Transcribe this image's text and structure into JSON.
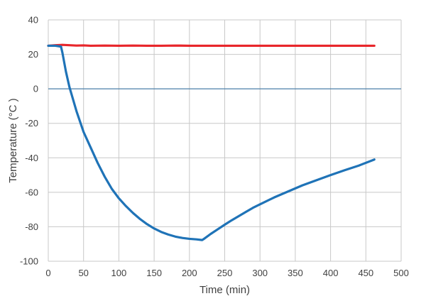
{
  "chart_data": {
    "type": "line",
    "title": "",
    "xlabel": "Time (min)",
    "ylabel": "Temperature (°C )",
    "xlim": [
      0,
      500
    ],
    "ylim": [
      -100,
      40
    ],
    "xticks": [
      0,
      50,
      100,
      150,
      200,
      250,
      300,
      350,
      400,
      450,
      500
    ],
    "yticks": [
      -100,
      -80,
      -60,
      -40,
      -20,
      0,
      20,
      40
    ],
    "grid": true,
    "legend": "none",
    "zero_line_color": "#4a7fa8",
    "series": [
      {
        "color": "#e8262b",
        "points": [
          [
            0,
            25
          ],
          [
            10,
            25.3
          ],
          [
            20,
            25.5
          ],
          [
            30,
            25.3
          ],
          [
            40,
            25.1
          ],
          [
            50,
            25.2
          ],
          [
            60,
            25
          ],
          [
            80,
            25.1
          ],
          [
            100,
            25
          ],
          [
            120,
            25.1
          ],
          [
            140,
            25
          ],
          [
            160,
            25
          ],
          [
            180,
            25.1
          ],
          [
            200,
            25
          ],
          [
            220,
            25
          ],
          [
            240,
            25
          ],
          [
            260,
            25
          ],
          [
            280,
            25
          ],
          [
            300,
            25
          ],
          [
            320,
            25
          ],
          [
            340,
            25
          ],
          [
            360,
            25
          ],
          [
            380,
            25
          ],
          [
            400,
            25
          ],
          [
            420,
            25
          ],
          [
            440,
            25
          ],
          [
            462,
            25
          ]
        ]
      },
      {
        "color": "#1f73b7",
        "points": [
          [
            0,
            25
          ],
          [
            10,
            25
          ],
          [
            18,
            24.5
          ],
          [
            20,
            21
          ],
          [
            25,
            10
          ],
          [
            30,
            1
          ],
          [
            40,
            -13
          ],
          [
            50,
            -25
          ],
          [
            60,
            -34
          ],
          [
            70,
            -43
          ],
          [
            80,
            -51
          ],
          [
            90,
            -58
          ],
          [
            100,
            -63.5
          ],
          [
            110,
            -68
          ],
          [
            120,
            -72
          ],
          [
            130,
            -75.5
          ],
          [
            140,
            -78.5
          ],
          [
            150,
            -81
          ],
          [
            160,
            -83
          ],
          [
            170,
            -84.5
          ],
          [
            180,
            -85.7
          ],
          [
            190,
            -86.5
          ],
          [
            200,
            -87
          ],
          [
            210,
            -87.3
          ],
          [
            218,
            -87.7
          ],
          [
            220,
            -87.2
          ],
          [
            230,
            -84.2
          ],
          [
            240,
            -81.5
          ],
          [
            250,
            -78.8
          ],
          [
            260,
            -76.2
          ],
          [
            270,
            -73.8
          ],
          [
            280,
            -71.4
          ],
          [
            290,
            -69
          ],
          [
            300,
            -67
          ],
          [
            320,
            -63
          ],
          [
            340,
            -59.5
          ],
          [
            360,
            -56
          ],
          [
            380,
            -53
          ],
          [
            400,
            -50
          ],
          [
            420,
            -47.2
          ],
          [
            440,
            -44.5
          ],
          [
            462,
            -41
          ]
        ]
      }
    ]
  }
}
